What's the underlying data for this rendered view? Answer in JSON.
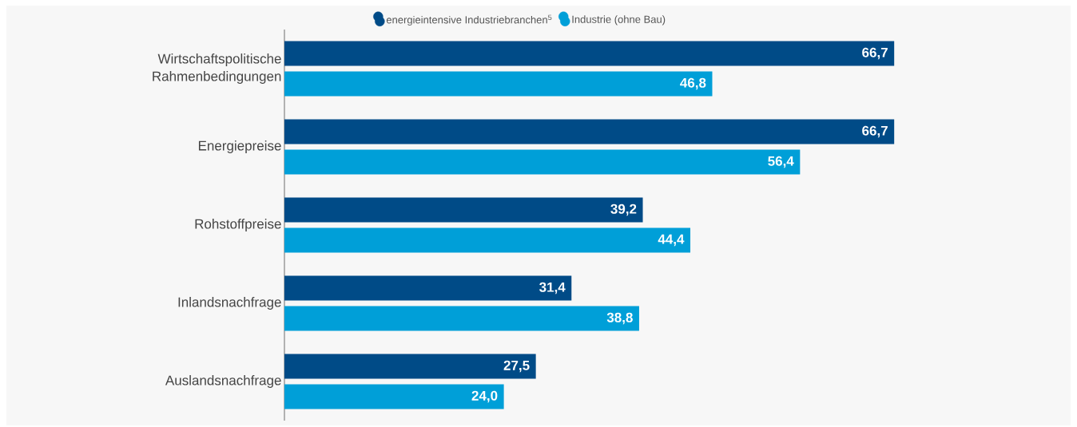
{
  "chart_data": {
    "type": "bar",
    "orientation": "horizontal",
    "categories": [
      "Wirtschaftspolitische Rahmenbedingungen",
      "Energiepreise",
      "Rohstoffpreise",
      "Inlandsnachfrage",
      "Auslandsnachfrage"
    ],
    "series": [
      {
        "name": "energieintensive Industriebranchen$^{5}$",
        "color": "#004b87",
        "values": [
          66.7,
          66.7,
          39.2,
          31.4,
          27.5
        ],
        "value_labels": [
          "66,7",
          "66,7",
          "39,2",
          "31,4",
          "27,5"
        ]
      },
      {
        "name": "Industrie (ohne Bau)",
        "color": "#009fd8",
        "values": [
          46.8,
          56.4,
          44.4,
          38.8,
          24.0
        ],
        "value_labels": [
          "46,8",
          "56,4",
          "44,4",
          "38,8",
          "24,0"
        ]
      }
    ],
    "xlim": [
      0,
      86
    ],
    "legend": "top"
  }
}
